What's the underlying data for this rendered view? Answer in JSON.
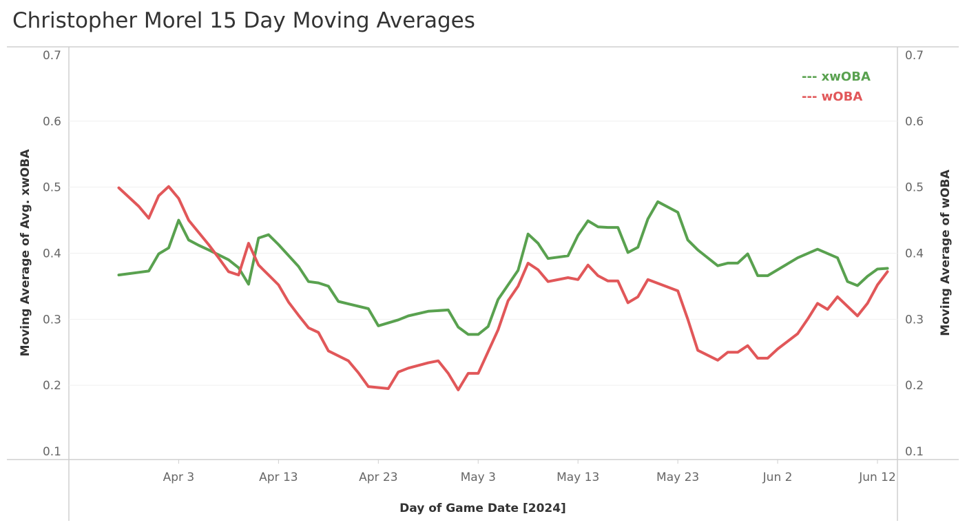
{
  "chart_data": {
    "type": "line",
    "title": "Christopher Morel 15 Day Moving Averages",
    "xlabel": "Day of Game Date [2024]",
    "ylabel_left": "Moving Average of Avg. xwOBA",
    "ylabel_right": "Moving Average of wOBA",
    "ylim": [
      0.1,
      0.7
    ],
    "yticks": [
      "0.1",
      "0.2",
      "0.3",
      "0.4",
      "0.5",
      "0.6",
      "0.7"
    ],
    "xlim": [
      "2024-03-23",
      "2024-06-14"
    ],
    "xticks": [
      {
        "date": "2024-04-03",
        "label": "Apr 3"
      },
      {
        "date": "2024-04-13",
        "label": "Apr 13"
      },
      {
        "date": "2024-04-23",
        "label": "Apr 23"
      },
      {
        "date": "2024-05-03",
        "label": "May 3"
      },
      {
        "date": "2024-05-13",
        "label": "May 13"
      },
      {
        "date": "2024-05-23",
        "label": "May 23"
      },
      {
        "date": "2024-06-02",
        "label": "Jun 2"
      },
      {
        "date": "2024-06-12",
        "label": "Jun 12"
      }
    ],
    "grid": true,
    "legend": {
      "position": "top-right",
      "entries": [
        "--- xwOBA",
        "--- wOBA"
      ]
    },
    "series": [
      {
        "name": "xwOBA",
        "color": "#59a14f",
        "points": [
          [
            "2024-03-28",
            0.367
          ],
          [
            "2024-03-30",
            0.371
          ],
          [
            "2024-03-31",
            0.373
          ],
          [
            "2024-04-01",
            0.399
          ],
          [
            "2024-04-02",
            0.408
          ],
          [
            "2024-04-03",
            0.45
          ],
          [
            "2024-04-04",
            0.42
          ],
          [
            "2024-04-05",
            0.412
          ],
          [
            "2024-04-06",
            0.405
          ],
          [
            "2024-04-08",
            0.39
          ],
          [
            "2024-04-09",
            0.378
          ],
          [
            "2024-04-10",
            0.353
          ],
          [
            "2024-04-11",
            0.423
          ],
          [
            "2024-04-12",
            0.428
          ],
          [
            "2024-04-13",
            0.413
          ],
          [
            "2024-04-15",
            0.38
          ],
          [
            "2024-04-16",
            0.357
          ],
          [
            "2024-04-17",
            0.355
          ],
          [
            "2024-04-18",
            0.35
          ],
          [
            "2024-04-19",
            0.327
          ],
          [
            "2024-04-22",
            0.316
          ],
          [
            "2024-04-23",
            0.29
          ],
          [
            "2024-04-25",
            0.299
          ],
          [
            "2024-04-26",
            0.305
          ],
          [
            "2024-04-28",
            0.312
          ],
          [
            "2024-04-30",
            0.314
          ],
          [
            "2024-05-01",
            0.288
          ],
          [
            "2024-05-02",
            0.277
          ],
          [
            "2024-05-03",
            0.277
          ],
          [
            "2024-05-04",
            0.289
          ],
          [
            "2024-05-05",
            0.33
          ],
          [
            "2024-05-06",
            0.352
          ],
          [
            "2024-05-07",
            0.374
          ],
          [
            "2024-05-08",
            0.429
          ],
          [
            "2024-05-09",
            0.415
          ],
          [
            "2024-05-10",
            0.392
          ],
          [
            "2024-05-12",
            0.396
          ],
          [
            "2024-05-13",
            0.427
          ],
          [
            "2024-05-14",
            0.449
          ],
          [
            "2024-05-15",
            0.44
          ],
          [
            "2024-05-16",
            0.439
          ],
          [
            "2024-05-17",
            0.439
          ],
          [
            "2024-05-18",
            0.401
          ],
          [
            "2024-05-19",
            0.409
          ],
          [
            "2024-05-20",
            0.452
          ],
          [
            "2024-05-21",
            0.478
          ],
          [
            "2024-05-23",
            0.462
          ],
          [
            "2024-05-24",
            0.42
          ],
          [
            "2024-05-25",
            0.405
          ],
          [
            "2024-05-27",
            0.381
          ],
          [
            "2024-05-28",
            0.385
          ],
          [
            "2024-05-29",
            0.385
          ],
          [
            "2024-05-30",
            0.399
          ],
          [
            "2024-05-31",
            0.366
          ],
          [
            "2024-06-01",
            0.366
          ],
          [
            "2024-06-02",
            0.375
          ],
          [
            "2024-06-04",
            0.393
          ],
          [
            "2024-06-06",
            0.406
          ],
          [
            "2024-06-08",
            0.393
          ],
          [
            "2024-06-09",
            0.357
          ],
          [
            "2024-06-10",
            0.351
          ],
          [
            "2024-06-11",
            0.365
          ],
          [
            "2024-06-12",
            0.376
          ],
          [
            "2024-06-13",
            0.377
          ]
        ]
      },
      {
        "name": "wOBA",
        "color": "#e15759",
        "points": [
          [
            "2024-03-28",
            0.499
          ],
          [
            "2024-03-30",
            0.471
          ],
          [
            "2024-03-31",
            0.453
          ],
          [
            "2024-04-01",
            0.487
          ],
          [
            "2024-04-02",
            0.501
          ],
          [
            "2024-04-03",
            0.483
          ],
          [
            "2024-04-04",
            0.45
          ],
          [
            "2024-04-06",
            0.413
          ],
          [
            "2024-04-07",
            0.393
          ],
          [
            "2024-04-08",
            0.372
          ],
          [
            "2024-04-09",
            0.367
          ],
          [
            "2024-04-10",
            0.415
          ],
          [
            "2024-04-11",
            0.382
          ],
          [
            "2024-04-12",
            0.367
          ],
          [
            "2024-04-13",
            0.352
          ],
          [
            "2024-04-14",
            0.326
          ],
          [
            "2024-04-15",
            0.306
          ],
          [
            "2024-04-16",
            0.287
          ],
          [
            "2024-04-17",
            0.28
          ],
          [
            "2024-04-18",
            0.252
          ],
          [
            "2024-04-20",
            0.237
          ],
          [
            "2024-04-21",
            0.219
          ],
          [
            "2024-04-22",
            0.198
          ],
          [
            "2024-04-24",
            0.195
          ],
          [
            "2024-04-25",
            0.22
          ],
          [
            "2024-04-26",
            0.226
          ],
          [
            "2024-04-28",
            0.234
          ],
          [
            "2024-04-29",
            0.237
          ],
          [
            "2024-04-30",
            0.218
          ],
          [
            "2024-05-01",
            0.193
          ],
          [
            "2024-05-02",
            0.218
          ],
          [
            "2024-05-03",
            0.218
          ],
          [
            "2024-05-05",
            0.284
          ],
          [
            "2024-05-06",
            0.328
          ],
          [
            "2024-05-07",
            0.35
          ],
          [
            "2024-05-08",
            0.385
          ],
          [
            "2024-05-09",
            0.375
          ],
          [
            "2024-05-10",
            0.357
          ],
          [
            "2024-05-12",
            0.363
          ],
          [
            "2024-05-13",
            0.36
          ],
          [
            "2024-05-14",
            0.382
          ],
          [
            "2024-05-15",
            0.366
          ],
          [
            "2024-05-16",
            0.358
          ],
          [
            "2024-05-17",
            0.358
          ],
          [
            "2024-05-18",
            0.325
          ],
          [
            "2024-05-19",
            0.334
          ],
          [
            "2024-05-20",
            0.36
          ],
          [
            "2024-05-23",
            0.343
          ],
          [
            "2024-05-24",
            0.3
          ],
          [
            "2024-05-25",
            0.253
          ],
          [
            "2024-05-27",
            0.238
          ],
          [
            "2024-05-28",
            0.25
          ],
          [
            "2024-05-29",
            0.25
          ],
          [
            "2024-05-30",
            0.26
          ],
          [
            "2024-05-31",
            0.241
          ],
          [
            "2024-06-01",
            0.241
          ],
          [
            "2024-06-02",
            0.255
          ],
          [
            "2024-06-04",
            0.278
          ],
          [
            "2024-06-05",
            0.3
          ],
          [
            "2024-06-06",
            0.324
          ],
          [
            "2024-06-07",
            0.315
          ],
          [
            "2024-06-08",
            0.334
          ],
          [
            "2024-06-10",
            0.305
          ],
          [
            "2024-06-11",
            0.324
          ],
          [
            "2024-06-12",
            0.352
          ],
          [
            "2024-06-13",
            0.372
          ]
        ]
      }
    ]
  }
}
